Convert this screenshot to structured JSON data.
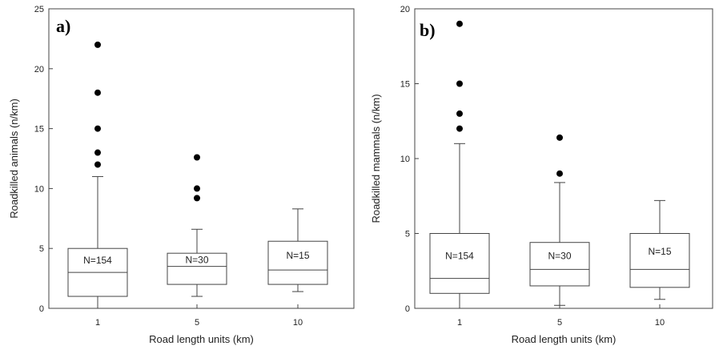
{
  "chart_data": [
    {
      "type": "box",
      "panel_label": "a)",
      "xlabel": "Road length units (km)",
      "ylabel": "Roadkilled animals (n/km)",
      "ylim": [
        0,
        25
      ],
      "yticks": [
        "0",
        "5",
        "10",
        "15",
        "20",
        "25"
      ],
      "categories": [
        "1",
        "5",
        "10"
      ],
      "boxes": [
        {
          "category": "1",
          "n_label": "N=154",
          "whisker_low": 0,
          "q1": 1,
          "median": 3,
          "q3": 5,
          "whisker_high": 11,
          "outliers": [
            12,
            13,
            15,
            18,
            22
          ]
        },
        {
          "category": "5",
          "n_label": "N=30",
          "whisker_low": 1,
          "q1": 2,
          "median": 3.5,
          "q3": 4.6,
          "whisker_high": 6.6,
          "outliers": [
            9.2,
            10,
            12.6
          ]
        },
        {
          "category": "10",
          "n_label": "N=15",
          "whisker_low": 1.4,
          "q1": 2,
          "median": 3.2,
          "q3": 5.6,
          "whisker_high": 8.3,
          "outliers": []
        }
      ]
    },
    {
      "type": "box",
      "panel_label": "b)",
      "xlabel": "Road length units (km)",
      "ylabel": "Roadkilled mammals (n/km)",
      "ylim": [
        0,
        20
      ],
      "yticks": [
        "0",
        "5",
        "10",
        "15",
        "20"
      ],
      "categories": [
        "1",
        "5",
        "10"
      ],
      "boxes": [
        {
          "category": "1",
          "n_label": "N=154",
          "whisker_low": 0,
          "q1": 1,
          "median": 2,
          "q3": 5,
          "whisker_high": 11,
          "outliers": [
            12,
            13,
            15,
            19
          ]
        },
        {
          "category": "5",
          "n_label": "N=30",
          "whisker_low": 0.2,
          "q1": 1.5,
          "median": 2.6,
          "q3": 4.4,
          "whisker_high": 8.4,
          "outliers": [
            9,
            11.4
          ]
        },
        {
          "category": "10",
          "n_label": "N=15",
          "whisker_low": 0.6,
          "q1": 1.4,
          "median": 2.6,
          "q3": 5,
          "whisker_high": 7.2,
          "outliers": []
        }
      ]
    }
  ]
}
